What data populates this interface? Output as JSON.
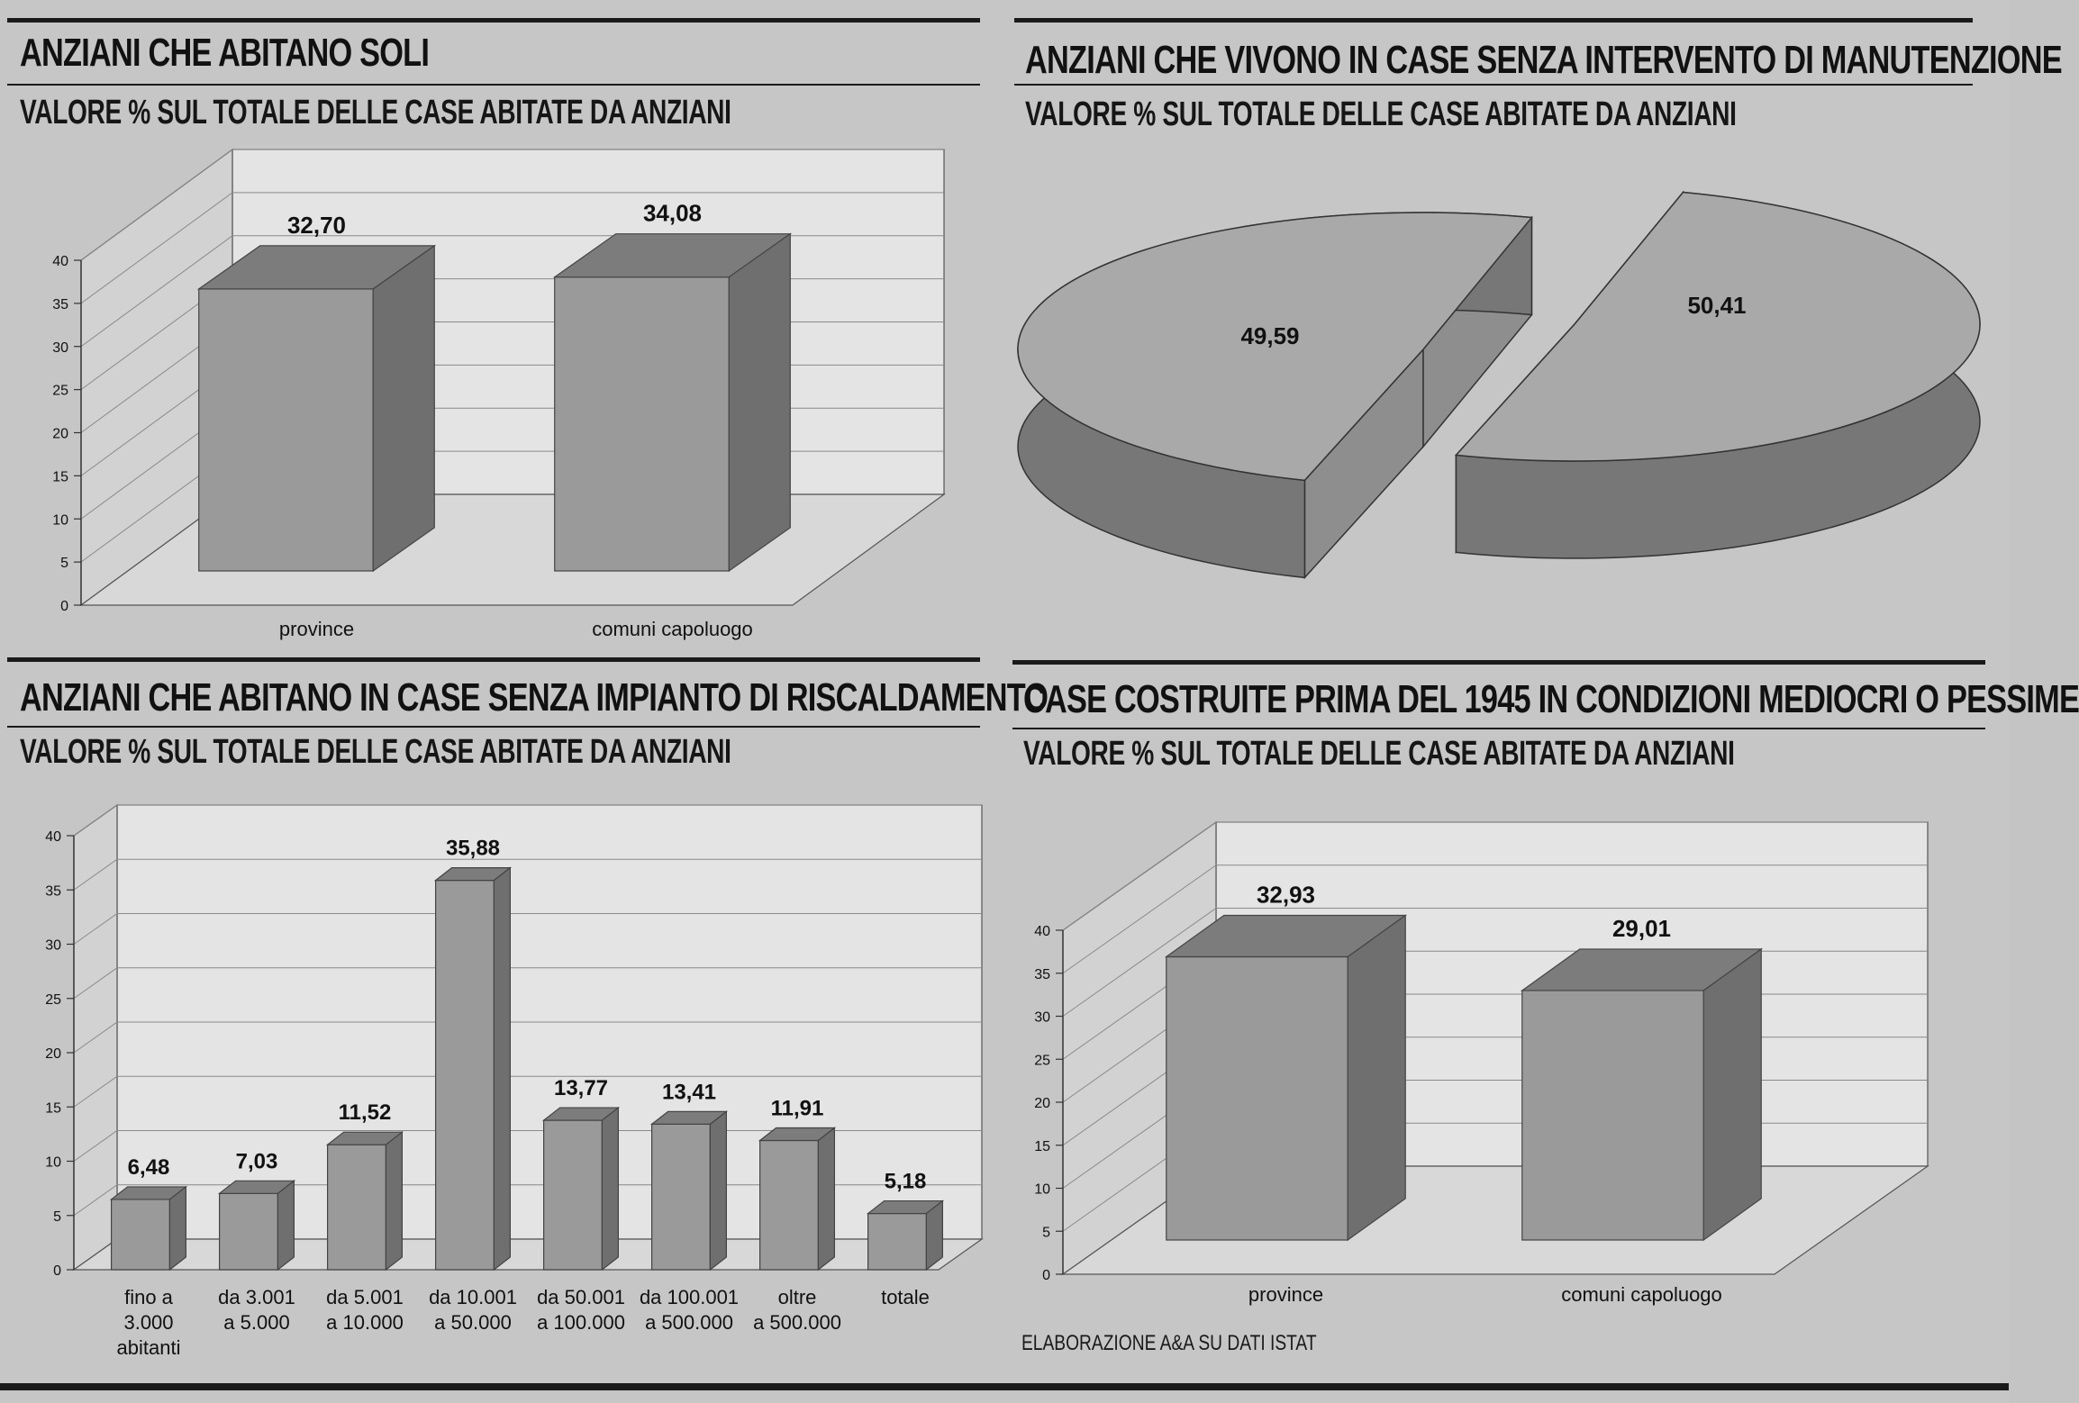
{
  "colors": {
    "background": "#c6c6c6",
    "plot_background": "#e4e4e4",
    "bar_front": "#9a9a9a",
    "bar_top": "#7c7c7c",
    "bar_side": "#6f6f6f",
    "rule": "#1a1a1a",
    "grid": "#8a8a8a"
  },
  "source": "ELABORAZIONE A&A SU DATI ISTAT",
  "chart_data": [
    {
      "type": "bar",
      "title": "ANZIANI CHE ABITANO SOLI",
      "subtitle": "VALORE % SUL TOTALE DELLE CASE ABITATE DA ANZIANI",
      "categories": [
        "province",
        "comuni capoluogo"
      ],
      "values": [
        32.7,
        34.08
      ],
      "value_labels": [
        "32,70",
        "34,08"
      ],
      "ylim": [
        0,
        40
      ],
      "yticks": [
        0,
        5,
        10,
        15,
        20,
        25,
        30,
        35,
        40
      ],
      "grid": true,
      "style": "3d"
    },
    {
      "type": "pie",
      "title": "ANZIANI CHE VIVONO IN CASE SENZA INTERVENTO DI MANUTENZIONE",
      "subtitle": "VALORE % SUL TOTALE DELLE CASE ABITATE DA ANZIANI",
      "values": [
        49.59,
        50.41
      ],
      "value_labels": [
        "49,59",
        "50,41"
      ],
      "style": "3d-exploded"
    },
    {
      "type": "bar",
      "title": "ANZIANI CHE ABITANO IN CASE SENZA IMPIANTO DI RISCALDAMENTO",
      "subtitle": "VALORE % SUL TOTALE DELLE CASE ABITATE DA ANZIANI",
      "categories": [
        [
          "fino a",
          "3.000",
          "abitanti"
        ],
        [
          "da 3.001",
          "a 5.000"
        ],
        [
          "da 5.001",
          "a 10.000"
        ],
        [
          "da 10.001",
          "a 50.000"
        ],
        [
          "da 50.001",
          "a 100.000"
        ],
        [
          "da 100.001",
          "a 500.000"
        ],
        [
          "oltre",
          "a 500.000"
        ],
        [
          "totale"
        ]
      ],
      "values": [
        6.48,
        7.03,
        11.52,
        35.88,
        13.77,
        13.41,
        11.91,
        5.18
      ],
      "value_labels": [
        "6,48",
        "7,03",
        "11,52",
        "35,88",
        "13,77",
        "13,41",
        "11,91",
        "5,18"
      ],
      "ylim": [
        0,
        40
      ],
      "yticks": [
        0,
        5,
        10,
        15,
        20,
        25,
        30,
        35,
        40
      ],
      "grid": true,
      "style": "3d"
    },
    {
      "type": "bar",
      "title": "CASE COSTRUITE PRIMA DEL 1945 IN CONDIZIONI MEDIOCRI O PESSIME",
      "subtitle": "VALORE % SUL TOTALE DELLE CASE ABITATE DA ANZIANI",
      "categories": [
        "province",
        "comuni capoluogo"
      ],
      "values": [
        32.93,
        29.01
      ],
      "value_labels": [
        "32,93",
        "29,01"
      ],
      "ylim": [
        0,
        40
      ],
      "yticks": [
        0,
        5,
        10,
        15,
        20,
        25,
        30,
        35,
        40
      ],
      "grid": true,
      "style": "3d"
    }
  ]
}
